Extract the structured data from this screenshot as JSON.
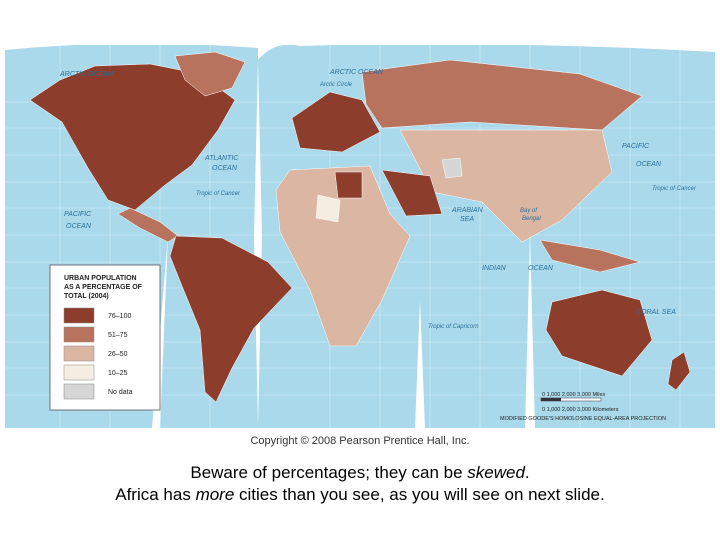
{
  "labels": {
    "arctic_west": "ARCTIC OCEAN",
    "arctic_east": "ARCTIC OCEAN",
    "arctic_circle": "Arctic Circle",
    "atlantic_1": "ATLANTIC",
    "atlantic_2": "OCEAN",
    "tropic_cancer": "Tropic of Cancer",
    "pacific_1": "PACIFIC",
    "pacific_2": "OCEAN",
    "arabian_1": "ARABIAN",
    "arabian_2": "SEA",
    "bengal_1": "Bay of",
    "bengal_2": "Bengal",
    "indian_1": "INDIAN",
    "indian_2": "OCEAN",
    "tropic_capricorn": "Tropic of Capricorn",
    "coral_sea": "CORAL SEA"
  },
  "legend": {
    "title": [
      "URBAN POPULATION",
      "AS A PERCENTAGE OF",
      "TOTAL (2004)"
    ],
    "items": [
      {
        "label": "76–100",
        "color": "#8c3d2b"
      },
      {
        "label": "51–75",
        "color": "#b7735d"
      },
      {
        "label": "26–50",
        "color": "#dbb6a2"
      },
      {
        "label": "10–25",
        "color": "#f4ede2"
      },
      {
        "label": "No data",
        "color": "#d6d6d6"
      }
    ]
  },
  "scale": {
    "miles": "0   1,000   2,000   3,000 Miles",
    "kilometers": "0   1,000   2,000   3,000 Kilometers",
    "projection": "MODIFIED GOODE'S HOMOLOSINE EQUAL-AREA PROJECTION"
  },
  "copyright": "Copyright © 2008 Pearson Prentice Hall, Inc.",
  "caption": [
    [
      {
        "text": "Beware of percentages; they can be ",
        "italic": false
      },
      {
        "text": "skewed",
        "italic": true
      },
      {
        "text": ".",
        "italic": false
      }
    ],
    [
      {
        "text": "Africa has ",
        "italic": false
      },
      {
        "text": "more",
        "italic": true
      },
      {
        "text": " cities than you see, as you will see on next slide.",
        "italic": false
      }
    ]
  ]
}
